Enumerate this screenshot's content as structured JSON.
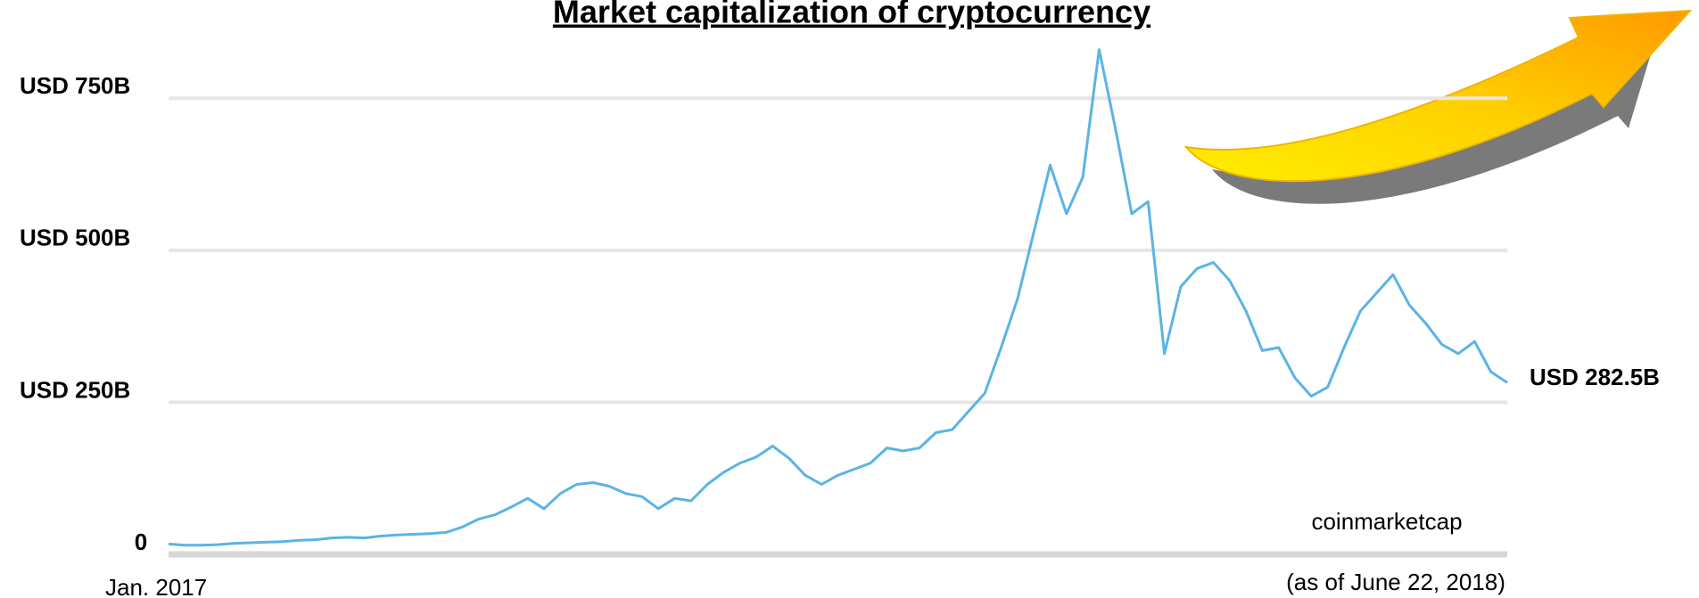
{
  "chart_data": {
    "type": "line",
    "title": "Market capitalization of cryptocurrency",
    "source": "coinmarketcap",
    "categories": [
      "Jan. 2017",
      null,
      null,
      null,
      null,
      null,
      null,
      null,
      null,
      null,
      null,
      null,
      null,
      null,
      null,
      null,
      null,
      null,
      null,
      null,
      null,
      null,
      null,
      null,
      null,
      null,
      null,
      null,
      null,
      null,
      null,
      null,
      null,
      null,
      null,
      null,
      null,
      null,
      null,
      null,
      null,
      null,
      null,
      null,
      null,
      null,
      null,
      null,
      null,
      null,
      null,
      null,
      null,
      null,
      null,
      null,
      null,
      null,
      null,
      null,
      null,
      null,
      null,
      null,
      null,
      null,
      null,
      null,
      null,
      null,
      null,
      null,
      null,
      null,
      null,
      null,
      null,
      null,
      null,
      null,
      null,
      null,
      "(as of June 22, 2018)"
    ],
    "values": [
      17,
      15,
      15,
      16,
      18,
      19,
      20,
      21,
      23,
      24,
      27,
      28,
      27,
      30,
      32,
      33,
      34,
      36,
      45,
      58,
      65,
      78,
      92,
      75,
      100,
      115,
      118,
      112,
      100,
      95,
      75,
      92,
      88,
      115,
      135,
      150,
      160,
      178,
      158,
      130,
      115,
      130,
      140,
      150,
      175,
      170,
      175,
      200,
      205,
      235,
      265,
      340,
      420,
      530,
      640,
      560,
      620,
      830,
      700,
      560,
      580,
      330,
      440,
      470,
      480,
      450,
      400,
      335,
      340,
      290,
      260,
      275,
      340,
      400,
      430,
      460,
      410,
      380,
      345,
      330,
      350,
      300,
      282.5
    ],
    "value_labels": [
      null,
      null,
      null,
      null,
      null,
      null,
      null,
      null,
      null,
      null,
      null,
      null,
      null,
      null,
      null,
      null,
      null,
      null,
      null,
      null,
      null,
      null,
      null,
      null,
      null,
      null,
      null,
      null,
      null,
      null,
      null,
      null,
      null,
      null,
      null,
      null,
      null,
      null,
      null,
      null,
      null,
      null,
      null,
      null,
      null,
      null,
      null,
      null,
      null,
      null,
      null,
      null,
      null,
      null,
      null,
      null,
      null,
      null,
      null,
      null,
      null,
      null,
      null,
      null,
      null,
      null,
      null,
      null,
      null,
      null,
      null,
      null,
      null,
      null,
      null,
      null,
      null,
      null,
      null,
      null,
      null,
      null,
      "USD 282.5B"
    ],
    "color": "#5ab4e5",
    "ylim": [
      0,
      850
    ],
    "yticks": [
      0,
      {
        "value": 250,
        "label": "USD 250B"
      },
      {
        "value": 500,
        "label": "USD 500B"
      },
      {
        "value": 750,
        "label": "USD 750B"
      }
    ],
    "grid": true
  }
}
